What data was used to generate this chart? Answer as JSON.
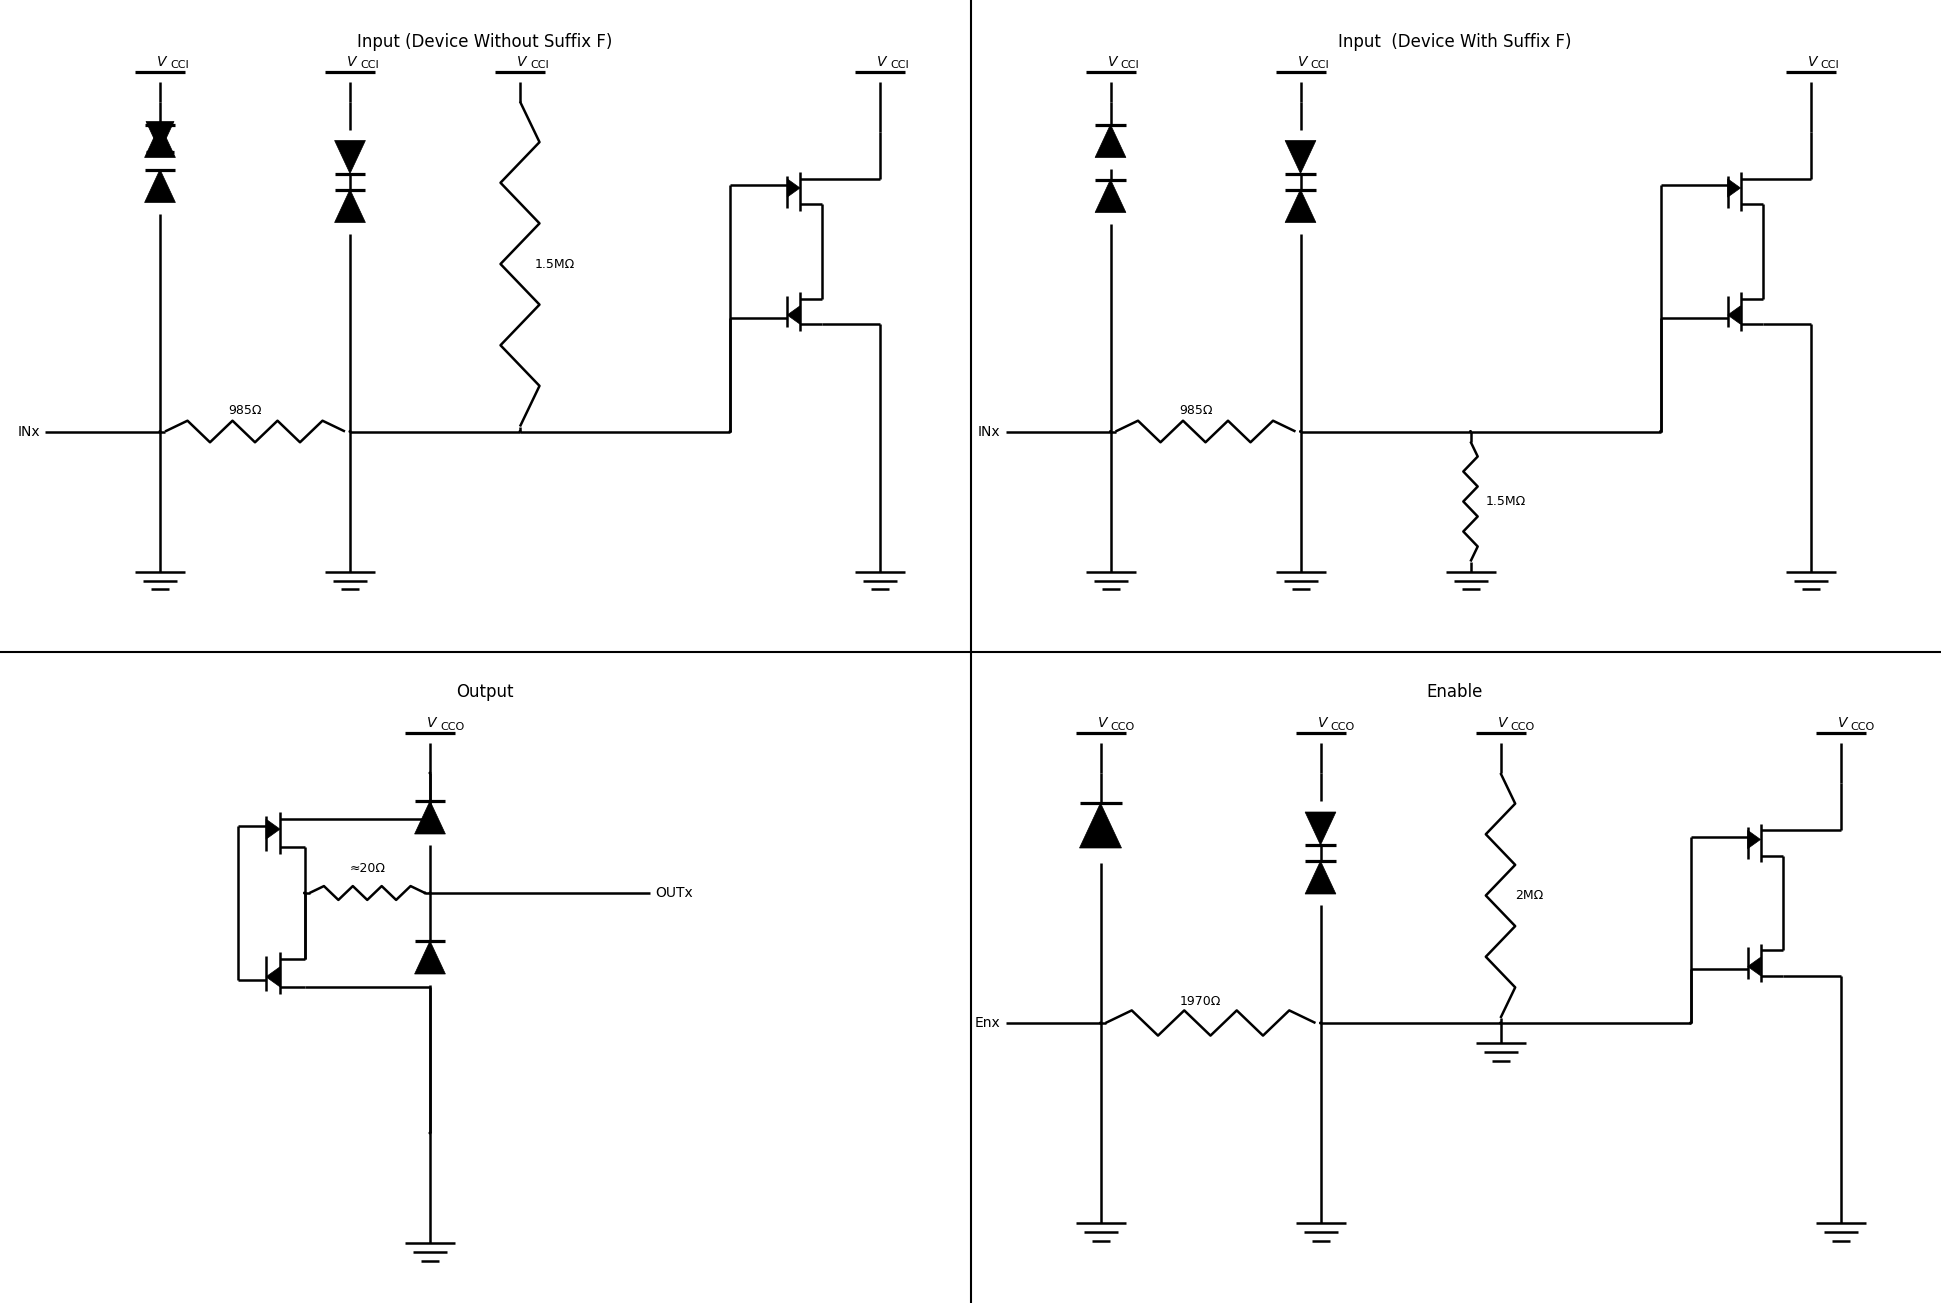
{
  "bg_color": "#ffffff",
  "line_color": "#000000",
  "lw": 1.8,
  "dot_r": 0.055,
  "titles": {
    "tl": "Input (Device Without Suffix F)",
    "tr": "Input  (Device With Suffix F)",
    "bl": "Output",
    "br": "Enable"
  },
  "labels": {
    "tl_res1": "985Ω",
    "tl_res2": "1.5MΩ",
    "tl_input": "INx",
    "tr_res1": "985Ω",
    "tr_res2": "1.5MΩ",
    "tr_input": "INx",
    "bl_res": "≈20Ω",
    "bl_out": "OUTx",
    "bl_vcc": "V",
    "bl_vcc_sub": "CCO",
    "br_res1": "1970Ω",
    "br_res2": "2MΩ",
    "br_input": "Enx"
  }
}
